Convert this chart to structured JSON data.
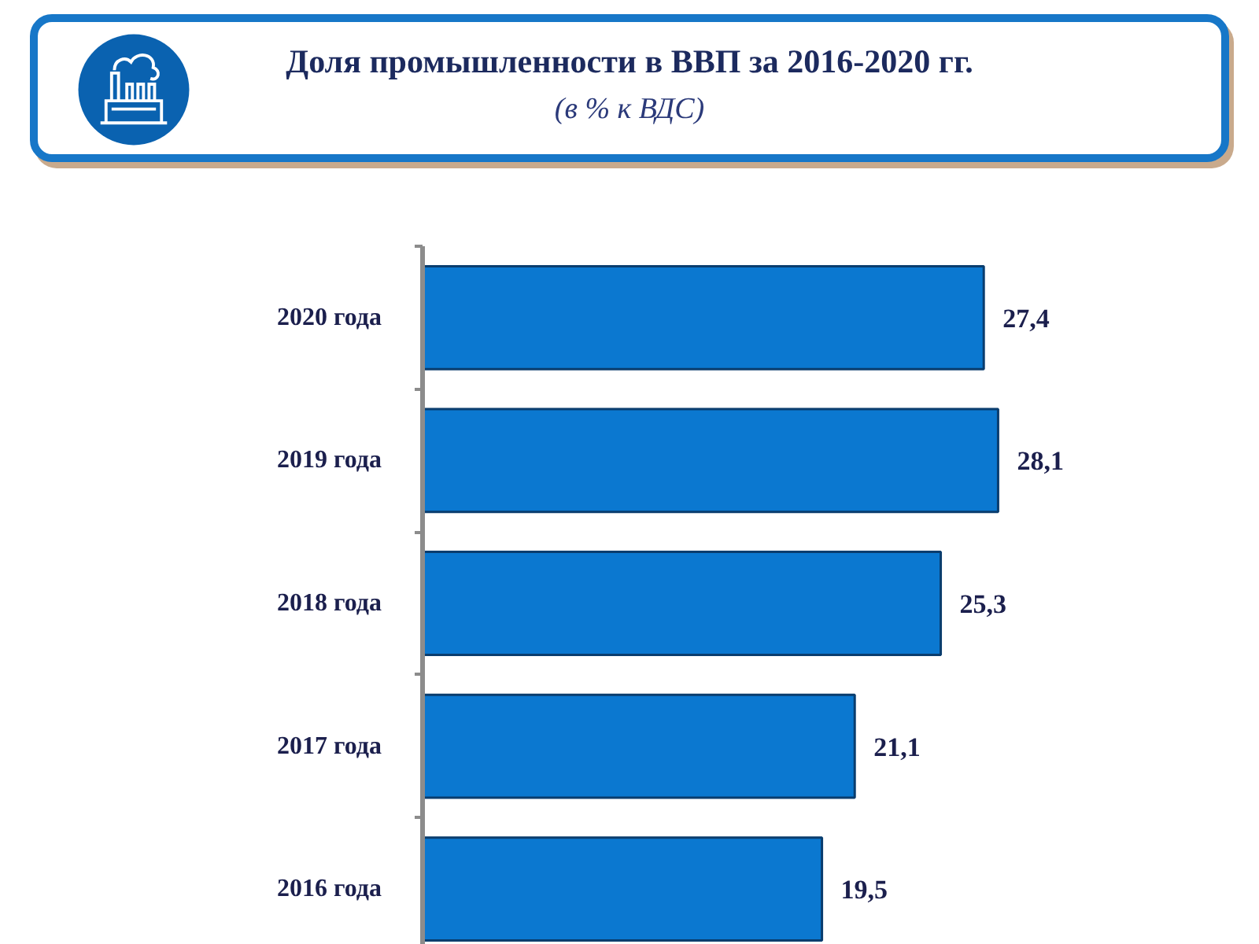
{
  "chart_data": {
    "type": "bar",
    "title": "Доля промышленности в ВВП за 2016-2020 гг.",
    "subtitle": "(в % к ВДС)",
    "orientation": "horizontal",
    "categories": [
      "2020 года",
      "2019 года",
      "2018 года",
      "2017 года",
      "2016 года"
    ],
    "values": [
      27.4,
      28.1,
      25.3,
      21.1,
      19.5
    ],
    "value_labels": [
      "27,4",
      "28,1",
      "25,3",
      "21,1",
      "19,5"
    ],
    "color": "#0b78d0"
  }
}
